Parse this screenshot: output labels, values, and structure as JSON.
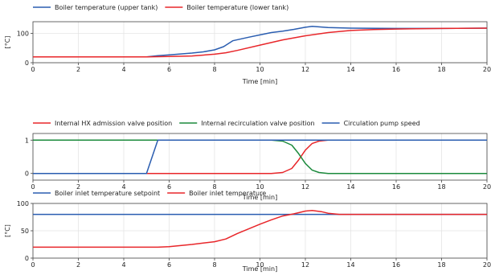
{
  "chart_data": [
    {
      "type": "line",
      "xlabel": "Time [min]",
      "ylabel": "[°C]",
      "xlim": [
        0,
        20
      ],
      "ylim": [
        0,
        140
      ],
      "xticks": [
        0,
        2,
        4,
        6,
        8,
        10,
        12,
        14,
        16,
        18,
        20
      ],
      "yticks": [
        0,
        100
      ],
      "grid": true,
      "legend": "top-left",
      "series": [
        {
          "name": "Boiler temperature (upper tank)",
          "color": "#2a5db0",
          "x": [
            0,
            5,
            5.5,
            6,
            7,
            7.5,
            8,
            8.4,
            8.8,
            9.5,
            10,
            10.5,
            11,
            11.5,
            12,
            12.3,
            13,
            14,
            16,
            18,
            20
          ],
          "y": [
            20,
            20,
            24,
            27,
            33,
            37,
            44,
            55,
            75,
            87,
            95,
            103,
            108,
            114,
            121,
            124,
            120,
            118,
            117,
            117,
            118
          ]
        },
        {
          "name": "Boiler temperature (lower tank)",
          "color": "#e8262a",
          "x": [
            0,
            5,
            6,
            7,
            8,
            8.5,
            9,
            10,
            11,
            12,
            13,
            14,
            15,
            16,
            18,
            20
          ],
          "y": [
            20,
            20,
            21,
            23,
            29,
            34,
            42,
            60,
            78,
            92,
            103,
            110,
            113,
            115,
            117,
            118
          ]
        }
      ]
    },
    {
      "type": "line",
      "xlabel": "Time [min]",
      "ylabel": "",
      "xlim": [
        0,
        20
      ],
      "ylim": [
        -0.2,
        1.2
      ],
      "xticks": [
        0,
        2,
        4,
        6,
        8,
        10,
        12,
        14,
        16,
        18,
        20
      ],
      "yticks": [
        0,
        1
      ],
      "grid": true,
      "legend": "top-left",
      "series": [
        {
          "name": "Internal HX admission valve position",
          "color": "#e8262a",
          "x": [
            0,
            10.5,
            11,
            11.4,
            11.7,
            12,
            12.3,
            12.6,
            13,
            20
          ],
          "y": [
            0,
            0,
            0.03,
            0.15,
            0.4,
            0.7,
            0.9,
            0.97,
            1,
            1
          ]
        },
        {
          "name": "Internal recirculation valve position",
          "color": "#1b8a3c",
          "x": [
            0,
            10.5,
            11,
            11.4,
            11.7,
            12,
            12.3,
            12.6,
            13,
            20
          ],
          "y": [
            1,
            1,
            0.97,
            0.85,
            0.6,
            0.3,
            0.1,
            0.03,
            0,
            0
          ]
        },
        {
          "name": "Circulation pump speed",
          "color": "#2a5db0",
          "x": [
            0,
            5,
            5.5,
            20
          ],
          "y": [
            0,
            0,
            1,
            1
          ]
        }
      ]
    },
    {
      "type": "line",
      "xlabel": "Time [min]",
      "ylabel": "[°C]",
      "xlim": [
        0,
        20
      ],
      "ylim": [
        0,
        100
      ],
      "xticks": [
        0,
        2,
        4,
        6,
        8,
        10,
        12,
        14,
        16,
        18,
        20
      ],
      "yticks": [
        0,
        50,
        100
      ],
      "grid": true,
      "legend": "top-left",
      "series": [
        {
          "name": "Boiler inlet temperature setpoint",
          "color": "#2a5db0",
          "x": [
            0,
            20
          ],
          "y": [
            80,
            80
          ]
        },
        {
          "name": "Boiler inlet temperature",
          "color": "#e8262a",
          "x": [
            0,
            5.5,
            6,
            7,
            8,
            8.5,
            9,
            10,
            10.5,
            11,
            11.5,
            12,
            12.3,
            12.7,
            13,
            13.5,
            14,
            16,
            18,
            20
          ],
          "y": [
            20,
            20,
            21,
            25,
            30,
            35,
            45,
            62,
            70,
            77,
            81,
            86,
            87,
            85,
            82,
            80,
            80,
            80,
            80,
            80
          ]
        }
      ]
    }
  ]
}
